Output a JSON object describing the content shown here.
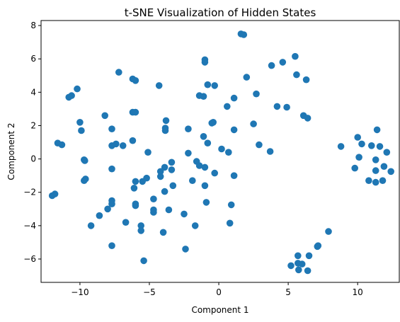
{
  "chart_data": {
    "type": "scatter",
    "title": "t-SNE Visualization of Hidden States",
    "xlabel": "Component 1",
    "ylabel": "Component 2",
    "xlim": [
      -12.8,
      13.0
    ],
    "ylim": [
      -7.4,
      8.3
    ],
    "xticks": [
      -10,
      -5,
      0,
      5,
      10
    ],
    "yticks": [
      -6,
      -4,
      -2,
      0,
      2,
      4,
      6,
      8
    ],
    "grid": false,
    "legend": "none",
    "marker_color": "#1f77b4",
    "points": [
      [
        -12.0,
        -2.2
      ],
      [
        -11.8,
        -2.1
      ],
      [
        -11.6,
        0.95
      ],
      [
        -11.3,
        0.85
      ],
      [
        -10.8,
        3.7
      ],
      [
        -10.6,
        3.8
      ],
      [
        -10.2,
        4.2
      ],
      [
        -10.0,
        2.2
      ],
      [
        -9.9,
        1.7
      ],
      [
        -9.7,
        -0.05
      ],
      [
        -9.65,
        -0.1
      ],
      [
        -9.7,
        -1.3
      ],
      [
        -9.6,
        -1.2
      ],
      [
        -9.2,
        -4.0
      ],
      [
        -8.6,
        -3.4
      ],
      [
        -8.2,
        2.6
      ],
      [
        -8.0,
        -3.0
      ],
      [
        -7.7,
        1.8
      ],
      [
        -7.7,
        0.8
      ],
      [
        -7.7,
        -0.6
      ],
      [
        -7.7,
        -2.5
      ],
      [
        -7.7,
        -2.7
      ],
      [
        -7.7,
        -5.2
      ],
      [
        -7.4,
        0.9
      ],
      [
        -7.2,
        5.2
      ],
      [
        -6.9,
        0.8
      ],
      [
        -6.7,
        -3.8
      ],
      [
        -6.2,
        4.8
      ],
      [
        -6.0,
        4.7
      ],
      [
        -6.2,
        2.8
      ],
      [
        -6.0,
        2.8
      ],
      [
        -6.2,
        1.1
      ],
      [
        -6.0,
        -1.35
      ],
      [
        -6.1,
        -1.75
      ],
      [
        -6.0,
        -2.7
      ],
      [
        -6.0,
        -2.8
      ],
      [
        -5.6,
        -4.0
      ],
      [
        -5.6,
        -4.3
      ],
      [
        -5.5,
        -1.35
      ],
      [
        -5.4,
        -6.1
      ],
      [
        -5.2,
        -1.15
      ],
      [
        -5.1,
        0.4
      ],
      [
        -4.7,
        -2.4
      ],
      [
        -4.7,
        -3.05
      ],
      [
        -4.7,
        -3.2
      ],
      [
        -4.3,
        4.4
      ],
      [
        -4.2,
        -0.75
      ],
      [
        -4.2,
        -1.05
      ],
      [
        -4.0,
        -4.4
      ],
      [
        -3.8,
        2.3
      ],
      [
        -3.85,
        1.85
      ],
      [
        -3.85,
        1.7
      ],
      [
        -3.9,
        -1.95
      ],
      [
        -3.9,
        -0.5
      ],
      [
        -3.6,
        -3.05
      ],
      [
        -3.4,
        -0.2
      ],
      [
        -3.4,
        -0.65
      ],
      [
        -3.3,
        -1.6
      ],
      [
        -2.5,
        -3.3
      ],
      [
        -2.4,
        -5.4
      ],
      [
        -2.2,
        1.8
      ],
      [
        -2.2,
        0.35
      ],
      [
        -1.9,
        -1.3
      ],
      [
        -1.7,
        -4.0
      ],
      [
        -1.6,
        -0.15
      ],
      [
        -1.4,
        -0.4
      ],
      [
        -1.4,
        3.8
      ],
      [
        -1.1,
        3.75
      ],
      [
        -1.0,
        5.95
      ],
      [
        -1.0,
        5.8
      ],
      [
        -1.1,
        1.35
      ],
      [
        -1.0,
        -0.5
      ],
      [
        -1.0,
        -1.6
      ],
      [
        -0.9,
        -2.6
      ],
      [
        -0.8,
        4.45
      ],
      [
        -0.8,
        0.95
      ],
      [
        -0.5,
        2.15
      ],
      [
        -0.4,
        2.2
      ],
      [
        -0.3,
        4.4
      ],
      [
        -0.3,
        -0.85
      ],
      [
        0.2,
        0.6
      ],
      [
        0.6,
        3.15
      ],
      [
        0.7,
        0.4
      ],
      [
        0.8,
        -3.85
      ],
      [
        0.9,
        -2.75
      ],
      [
        1.1,
        3.65
      ],
      [
        1.1,
        1.75
      ],
      [
        1.1,
        -1.0
      ],
      [
        1.6,
        7.5
      ],
      [
        1.8,
        7.45
      ],
      [
        2.0,
        4.9
      ],
      [
        2.5,
        2.1
      ],
      [
        2.7,
        3.9
      ],
      [
        2.9,
        0.85
      ],
      [
        3.7,
        0.45
      ],
      [
        3.8,
        5.6
      ],
      [
        4.2,
        3.15
      ],
      [
        4.6,
        5.8
      ],
      [
        4.9,
        3.1
      ],
      [
        5.2,
        -6.4
      ],
      [
        5.5,
        6.15
      ],
      [
        5.6,
        5.05
      ],
      [
        5.7,
        -5.8
      ],
      [
        5.7,
        -6.25
      ],
      [
        5.75,
        -6.65
      ],
      [
        6.0,
        -6.3
      ],
      [
        6.1,
        2.6
      ],
      [
        6.3,
        4.75
      ],
      [
        6.4,
        2.45
      ],
      [
        6.4,
        -6.7
      ],
      [
        6.5,
        -5.8
      ],
      [
        7.1,
        -5.25
      ],
      [
        7.15,
        -5.2
      ],
      [
        7.9,
        -4.35
      ],
      [
        8.8,
        0.75
      ],
      [
        9.8,
        -0.55
      ],
      [
        10.0,
        1.3
      ],
      [
        10.1,
        0.1
      ],
      [
        10.3,
        0.9
      ],
      [
        10.8,
        -1.3
      ],
      [
        11.0,
        0.8
      ],
      [
        11.3,
        -1.4
      ],
      [
        11.3,
        -0.7
      ],
      [
        11.3,
        -0.05
      ],
      [
        11.4,
        1.75
      ],
      [
        11.6,
        0.75
      ],
      [
        11.8,
        -1.3
      ],
      [
        11.9,
        -0.45
      ],
      [
        12.1,
        0.4
      ],
      [
        12.4,
        -0.75
      ]
    ]
  }
}
